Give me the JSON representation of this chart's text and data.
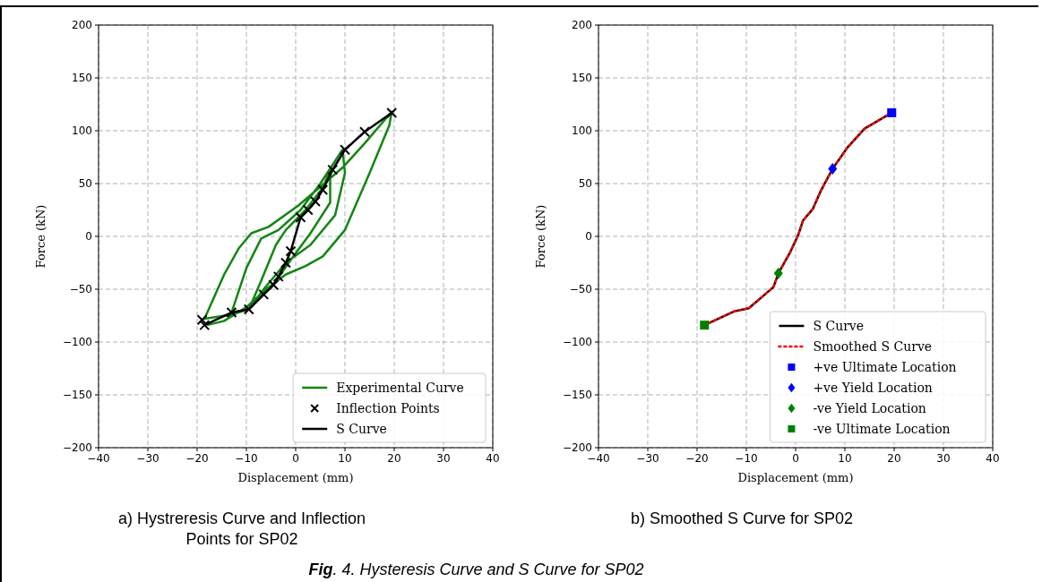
{
  "chart_data": [
    {
      "type": "line",
      "title": "a) Hystreresis Curve and Inflection Points for SP02",
      "xlabel": "Displacement (mm)",
      "ylabel": "Force (kN)",
      "xlim": [
        -40,
        40
      ],
      "ylim": [
        -200,
        200
      ],
      "xticks": [
        {
          "value": -40,
          "label": "−40"
        },
        {
          "value": -30,
          "label": "−30"
        },
        {
          "value": -20,
          "label": "−20"
        },
        {
          "value": -10,
          "label": "−10"
        },
        0,
        10,
        20,
        30,
        40
      ],
      "yticks": [
        {
          "value": -200,
          "label": "−200"
        },
        {
          "value": -150,
          "label": "−150"
        },
        {
          "value": -100,
          "label": "−100"
        },
        {
          "value": -50,
          "label": "−50"
        },
        0,
        50,
        100,
        150,
        200
      ],
      "grid": true,
      "legend": "bottom right",
      "annotations": [
        "Fig. 4. Hysteresis Curve and S Curve for SP02"
      ],
      "series": [
        {
          "name": "Experimental Curve",
          "type": "line",
          "color": "#138613",
          "line_style": "solid",
          "marker": "none",
          "x": [
            -9.5,
            -7,
            -4,
            -2,
            2,
            5.5,
            7,
            7,
            3,
            -0.5,
            -4,
            -6.5,
            -9.5,
            -13,
            -10,
            -7,
            -3.5,
            1,
            5,
            9.5,
            10,
            8,
            3,
            -2,
            -6.5,
            -9.5,
            -13,
            -18.5,
            -14.5,
            -11.5,
            -9,
            -5.5,
            0.5,
            5.5,
            9.5,
            14,
            19.5,
            19,
            15,
            10,
            5.5,
            2,
            -2,
            -6,
            -10,
            -14.5,
            -18
          ],
          "values": [
            -69,
            -42,
            -8,
            6,
            25,
            46,
            63,
            32,
            3,
            -19,
            -42,
            -55,
            -69,
            -72,
            -30,
            -2,
            6,
            25,
            50,
            82,
            60,
            20,
            -8,
            -25,
            -50,
            -69,
            -74,
            -78,
            -36,
            -11,
            3,
            9,
            29,
            49,
            65,
            88,
            118,
            105,
            60,
            6,
            -19,
            -28,
            -36,
            -50,
            -67,
            -80,
            -84
          ]
        },
        {
          "name": "Inflection Points",
          "type": "scatter",
          "color": "#000000",
          "marker": "cross",
          "x": [
            -19,
            -18.5,
            -13,
            -9.5,
            -6.5,
            -4.5,
            -3.5,
            -2,
            -1,
            1,
            2.5,
            4,
            5.5,
            7.5,
            10,
            14,
            19.5
          ],
          "values": [
            -79,
            -84,
            -72,
            -69,
            -55,
            -46,
            -38,
            -25,
            -14,
            18,
            25,
            33,
            44,
            63,
            82,
            99,
            117
          ]
        },
        {
          "name": "S Curve",
          "type": "line",
          "color": "#000000",
          "line_style": "solid",
          "marker": "none",
          "x": [
            -18.5,
            -13,
            -9.5,
            -6.5,
            -4.5,
            -3.5,
            -2,
            -1,
            1,
            2.5,
            4,
            5.5,
            7.5,
            10,
            14,
            19.5
          ],
          "values": [
            -84,
            -72,
            -69,
            -55,
            -46,
            -38,
            -25,
            -14,
            18,
            25,
            33,
            44,
            63,
            82,
            99,
            117
          ]
        }
      ]
    },
    {
      "type": "line",
      "title": "b) Smoothed S Curve for SP02",
      "xlabel": "Displacement (mm)",
      "ylabel": "Force (kN)",
      "xlim": [
        -40,
        40
      ],
      "ylim": [
        -200,
        200
      ],
      "xticks": [
        {
          "value": -40,
          "label": "−40"
        },
        {
          "value": -30,
          "label": "−30"
        },
        {
          "value": -20,
          "label": "−20"
        },
        {
          "value": -10,
          "label": "−10"
        },
        0,
        10,
        20,
        30,
        40
      ],
      "yticks": [
        {
          "value": -200,
          "label": "−200"
        },
        {
          "value": -150,
          "label": "−150"
        },
        {
          "value": -100,
          "label": "−100"
        },
        {
          "value": -50,
          "label": "−50"
        },
        0,
        50,
        100,
        150,
        200
      ],
      "grid": true,
      "legend": "bottom right",
      "series": [
        {
          "name": "S Curve",
          "type": "line",
          "color": "#000000",
          "line_style": "solid",
          "marker": "none",
          "x": [
            -18.5,
            -12.5,
            -9.5,
            -6.5,
            -4.5,
            -3.5,
            -1,
            0.5,
            1.5,
            3.5,
            5,
            7.5,
            10.5,
            14,
            19.5
          ],
          "values": [
            -84,
            -71,
            -68,
            -56,
            -48,
            -35,
            -14,
            1,
            15,
            26,
            42,
            64,
            84,
            102,
            117
          ]
        },
        {
          "name": "Smoothed S Curve",
          "type": "line",
          "color": "#ff0000",
          "line_style": "dotted",
          "marker": "none",
          "x": [
            -18.5,
            -12.5,
            -9.5,
            -6.5,
            -4.5,
            -3.5,
            -1,
            0.5,
            1.5,
            3.5,
            5,
            7.5,
            10.5,
            14,
            19.5
          ],
          "values": [
            -84,
            -71,
            -68,
            -56,
            -48,
            -35,
            -14,
            1,
            15,
            26,
            42,
            64,
            84,
            102,
            117
          ]
        },
        {
          "name": "+ve Ultimate Location",
          "type": "scatter",
          "color": "#0000ff",
          "marker": "square",
          "x": [
            19.5
          ],
          "values": [
            117
          ]
        },
        {
          "name": "+ve Yield Location",
          "type": "scatter",
          "color": "#0000ff",
          "marker": "diamond",
          "x": [
            7.5
          ],
          "values": [
            64
          ]
        },
        {
          "name": "-ve Yield Location",
          "type": "scatter",
          "color": "#008000",
          "marker": "diamond",
          "x": [
            -3.5
          ],
          "values": [
            -35
          ]
        },
        {
          "name": "-ve Ultimate Location",
          "type": "scatter",
          "color": "#008000",
          "marker": "square",
          "x": [
            -18.5
          ],
          "values": [
            -84
          ]
        }
      ]
    }
  ]
}
